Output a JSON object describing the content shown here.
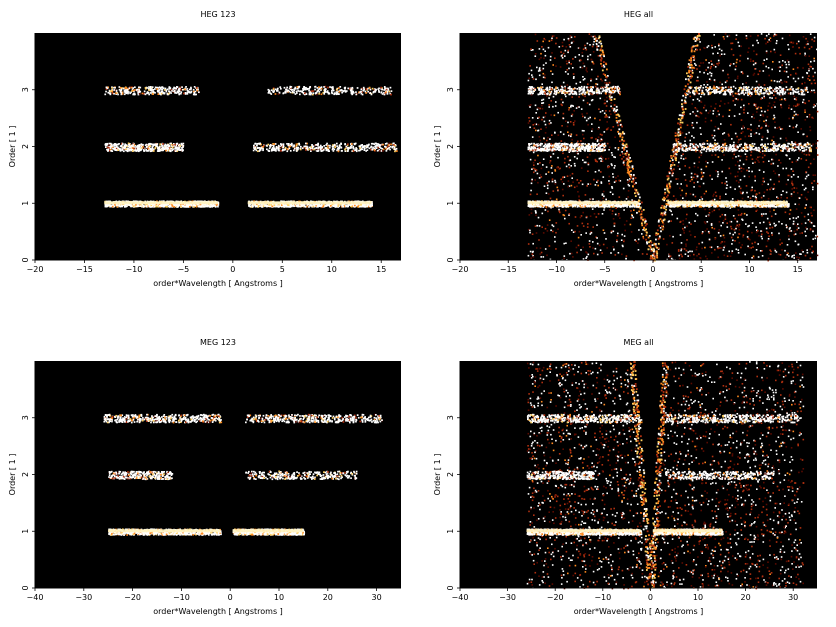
{
  "charts": [
    {
      "title": "HEG 123",
      "type": "heatmap",
      "xlabel": "order*Wavelength [ Angstroms ]",
      "ylabel": "Order [ 1 ]",
      "xlim": [
        -20,
        17
      ],
      "ylim": [
        0,
        4
      ],
      "xticks": [
        -20,
        -15,
        -10,
        -5,
        0,
        5,
        10,
        15
      ],
      "yticks": [
        0,
        1,
        2,
        3
      ],
      "colormap": [
        "#000000",
        "#5a0a00",
        "#b03010",
        "#ff8a20",
        "#ffd060",
        "#ffffff"
      ],
      "bands": [
        {
          "order": 1,
          "x_ranges": [
            [
              -13,
              -1.5
            ],
            [
              1.5,
              14
            ]
          ],
          "intensity": "high"
        },
        {
          "order": 2,
          "x_ranges": [
            [
              -13,
              -5
            ],
            [
              2,
              16.5
            ]
          ],
          "intensity": "medium"
        },
        {
          "order": 3,
          "x_ranges": [
            [
              -13,
              -3.5
            ],
            [
              3.5,
              16
            ]
          ],
          "intensity": "low"
        }
      ],
      "wedge": false
    },
    {
      "title": "HEG all",
      "type": "heatmap",
      "xlabel": "order*Wavelength [ Angstroms ]",
      "ylabel": "Order [ 1 ]",
      "xlim": [
        -20,
        17
      ],
      "ylim": [
        0,
        4
      ],
      "xticks": [
        -20,
        -15,
        -10,
        -5,
        0,
        5,
        10,
        15
      ],
      "yticks": [
        0,
        1,
        2,
        3
      ],
      "colormap": [
        "#000000",
        "#5a0a00",
        "#b03010",
        "#ff8a20",
        "#ffd060",
        "#ffffff"
      ],
      "bands": [
        {
          "order": 1,
          "x_ranges": [
            [
              -13,
              -1.5
            ],
            [
              1.5,
              14
            ]
          ],
          "intensity": "high"
        },
        {
          "order": 2,
          "x_ranges": [
            [
              -13,
              -5
            ],
            [
              2,
              16.5
            ]
          ],
          "intensity": "medium"
        },
        {
          "order": 3,
          "x_ranges": [
            [
              -13,
              -3.5
            ],
            [
              3.5,
              16
            ]
          ],
          "intensity": "low"
        }
      ],
      "wedge": true,
      "wedge_left_x_at_top": -6,
      "wedge_right_x_at_top": 4.5,
      "background_x_range": [
        -13,
        17
      ]
    },
    {
      "title": "MEG 123",
      "type": "heatmap",
      "xlabel": "order*Wavelength [ Angstroms ]",
      "ylabel": "Order [ 1 ]",
      "xlim": [
        -40,
        35
      ],
      "ylim": [
        0,
        4
      ],
      "xticks": [
        -40,
        -30,
        -20,
        -10,
        0,
        10,
        20,
        30
      ],
      "yticks": [
        0,
        1,
        2,
        3
      ],
      "colormap": [
        "#000000",
        "#5a0a00",
        "#b03010",
        "#ff8a20",
        "#ffd060",
        "#ffffff"
      ],
      "bands": [
        {
          "order": 1,
          "x_ranges": [
            [
              -25,
              -2
            ],
            [
              0.5,
              15
            ]
          ],
          "intensity": "high"
        },
        {
          "order": 2,
          "x_ranges": [
            [
              -25,
              -12
            ],
            [
              3,
              26
            ]
          ],
          "intensity": "low"
        },
        {
          "order": 3,
          "x_ranges": [
            [
              -26,
              -2
            ],
            [
              3,
              31
            ]
          ],
          "intensity": "medium"
        }
      ],
      "wedge": false
    },
    {
      "title": "MEG all",
      "type": "heatmap",
      "xlabel": "order*Wavelength [ Angstroms ]",
      "ylabel": "Order [ 1 ]",
      "xlim": [
        -40,
        35
      ],
      "ylim": [
        0,
        4
      ],
      "xticks": [
        -40,
        -30,
        -20,
        -10,
        0,
        10,
        20,
        30
      ],
      "yticks": [
        0,
        1,
        2,
        3
      ],
      "colormap": [
        "#000000",
        "#5a0a00",
        "#b03010",
        "#ff8a20",
        "#ffd060",
        "#ffffff"
      ],
      "bands": [
        {
          "order": 1,
          "x_ranges": [
            [
              -26,
              -2
            ],
            [
              0.5,
              15
            ]
          ],
          "intensity": "high"
        },
        {
          "order": 2,
          "x_ranges": [
            [
              -26,
              -12
            ],
            [
              3,
              26
            ]
          ],
          "intensity": "low"
        },
        {
          "order": 3,
          "x_ranges": [
            [
              -26,
              -2
            ],
            [
              3,
              31
            ]
          ],
          "intensity": "medium"
        }
      ],
      "wedge": true,
      "wedge_left_x_at_top": -4,
      "wedge_right_x_at_top": 3,
      "background_x_range": [
        -26,
        32
      ]
    }
  ]
}
